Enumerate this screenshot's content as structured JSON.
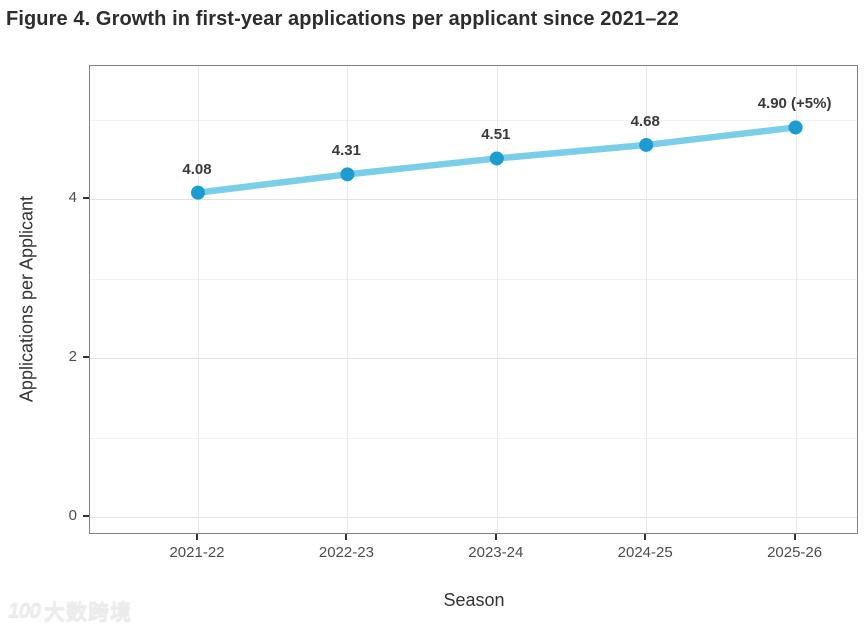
{
  "chart_data": {
    "type": "line",
    "title": "Figure 4. Growth in first-year applications per applicant since 2021–22",
    "categories": [
      "2021-22",
      "2022-23",
      "2023-24",
      "2024-25",
      "2025-26"
    ],
    "series": [
      {
        "name": "Applications per Applicant",
        "values": [
          4.08,
          4.31,
          4.51,
          4.68,
          4.9
        ]
      }
    ],
    "point_labels": [
      "4.08",
      "4.31",
      "4.51",
      "4.68",
      "4.90 (+5%)"
    ],
    "xlabel": "Season",
    "ylabel": "Applications per Applicant",
    "yticks": [
      0,
      2,
      4
    ],
    "yticks_minor": [
      1,
      3,
      5
    ],
    "ylim": [
      -0.23,
      5.67
    ],
    "grid": true,
    "legend": false,
    "line_color": "#79CEE9",
    "point_color": "#1C9CD0",
    "label_color": "#3a3a3a",
    "tick_label_color": "#4d4d4d"
  },
  "watermark": {
    "logo": "100",
    "text": "大数跨境"
  }
}
